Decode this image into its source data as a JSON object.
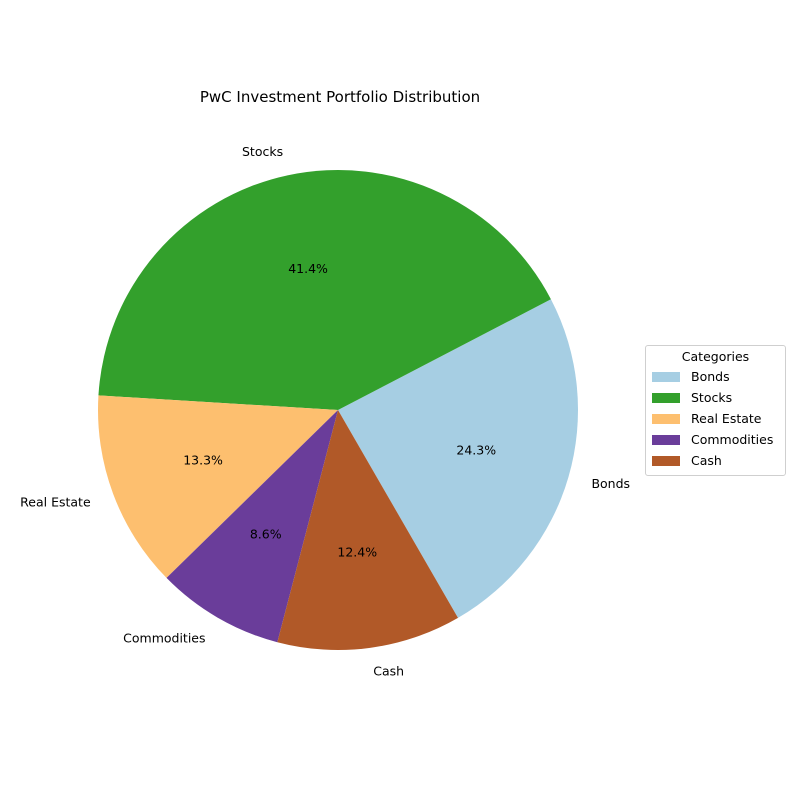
{
  "chart_data": {
    "type": "pie",
    "title": "PwC Investment Portfolio Distribution",
    "categories": [
      "Bonds",
      "Stocks",
      "Real Estate",
      "Commodities",
      "Cash"
    ],
    "values": [
      24.3,
      41.4,
      13.3,
      8.6,
      12.4
    ],
    "percent_labels": [
      "24.3%",
      "41.4%",
      "13.3%",
      "8.6%",
      "12.4%"
    ],
    "colors": [
      "#a6cee3",
      "#33a02c",
      "#fdbf6f",
      "#6a3d9a",
      "#b15928"
    ],
    "start_angle": -60,
    "direction": "counterclockwise",
    "legend": {
      "title": "Categories",
      "placement": "right"
    }
  }
}
